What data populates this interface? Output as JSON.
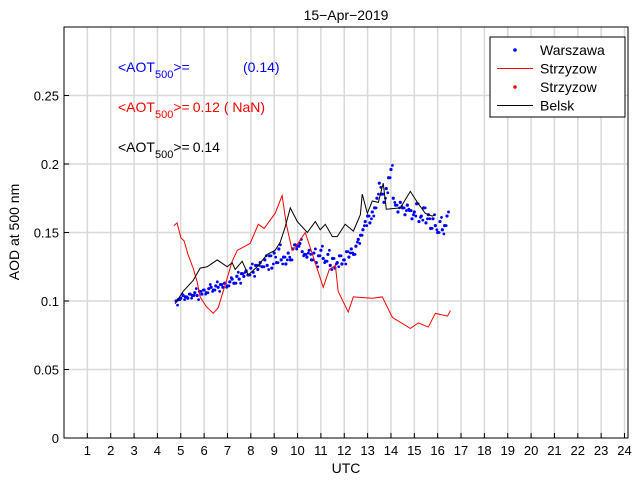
{
  "chart_data": {
    "type": "line",
    "title": "15−Apr−2019",
    "xlabel": "UTC",
    "ylabel": "AOD at 500 nm",
    "xlim": [
      0,
      24.15
    ],
    "ylim": [
      0,
      0.3
    ],
    "xticks": [
      1,
      2,
      3,
      4,
      5,
      6,
      7,
      8,
      9,
      10,
      11,
      12,
      13,
      14,
      15,
      16,
      17,
      18,
      19,
      20,
      21,
      22,
      23,
      24
    ],
    "yticks": [
      0,
      0.05,
      0.1,
      0.15,
      0.2,
      0.25
    ],
    "ytick_labels": [
      "0",
      "0.05",
      "0.1",
      "0.15",
      "0.2",
      "0.25"
    ],
    "grid": true,
    "legend_position": "top-right",
    "colors": {
      "warszawa": "#0000ff",
      "strzyzow": "#ff0000",
      "belsk": "#000000"
    },
    "annotations": [
      {
        "prefix": "<AOT",
        "sub": "500",
        "suffix": ">=",
        "value": "(0.14)",
        "color": "#0000ff"
      },
      {
        "prefix": "<AOT",
        "sub": "500",
        "suffix": ">=",
        "value": "0.12 ( NaN)",
        "color": "#ff0000"
      },
      {
        "prefix": "<AOT",
        "sub": "500",
        "suffix": ">=",
        "value": "0.14",
        "color": "#000000"
      }
    ],
    "series": [
      {
        "name": "Warszawa",
        "style": "dots",
        "color": "#0000ff",
        "x": [
          4.8,
          4.9,
          5.0,
          5.1,
          5.2,
          5.3,
          5.4,
          5.5,
          5.6,
          5.7,
          5.8,
          5.9,
          6.0,
          6.1,
          6.2,
          6.3,
          6.4,
          6.5,
          6.6,
          6.7,
          6.8,
          6.9,
          7.0,
          7.1,
          7.2,
          7.3,
          7.4,
          7.5,
          7.6,
          7.7,
          7.8,
          7.9,
          8.0,
          8.1,
          8.2,
          8.3,
          8.4,
          8.5,
          8.6,
          8.7,
          8.8,
          8.9,
          9.0,
          9.1,
          9.2,
          9.3,
          9.4,
          9.5,
          9.6,
          9.7,
          9.8,
          9.9,
          10.0,
          10.1,
          10.2,
          10.3,
          10.4,
          10.5,
          10.6,
          10.7,
          10.8,
          10.9,
          11.0,
          11.1,
          11.2,
          11.3,
          11.4,
          11.5,
          11.6,
          11.7,
          11.8,
          11.9,
          12.0,
          12.1,
          12.2,
          12.3,
          12.4,
          12.5,
          12.6,
          12.7,
          12.8,
          12.9,
          13.0,
          13.1,
          13.2,
          13.3,
          13.4,
          13.5,
          13.6,
          13.7,
          13.8,
          13.9,
          14.0,
          14.1,
          14.2,
          14.3,
          14.4,
          14.5,
          14.6,
          14.7,
          14.8,
          14.9,
          15.0,
          15.1,
          15.2,
          15.3,
          15.4,
          15.5,
          15.6,
          15.7,
          15.8,
          15.9,
          16.0,
          16.1,
          16.2,
          16.3,
          16.4
        ],
        "y": [
          0.1,
          0.101,
          0.102,
          0.104,
          0.103,
          0.102,
          0.105,
          0.104,
          0.106,
          0.104,
          0.107,
          0.105,
          0.108,
          0.106,
          0.109,
          0.11,
          0.108,
          0.111,
          0.11,
          0.112,
          0.11,
          0.113,
          0.111,
          0.114,
          0.116,
          0.113,
          0.118,
          0.116,
          0.12,
          0.118,
          0.122,
          0.119,
          0.124,
          0.121,
          0.126,
          0.123,
          0.128,
          0.125,
          0.13,
          0.126,
          0.133,
          0.124,
          0.135,
          0.128,
          0.138,
          0.13,
          0.132,
          0.127,
          0.135,
          0.13,
          0.138,
          0.141,
          0.14,
          0.142,
          0.136,
          0.134,
          0.132,
          0.137,
          0.13,
          0.135,
          0.128,
          0.133,
          0.137,
          0.131,
          0.129,
          0.134,
          0.126,
          0.131,
          0.124,
          0.128,
          0.133,
          0.127,
          0.13,
          0.136,
          0.132,
          0.138,
          0.134,
          0.14,
          0.145,
          0.148,
          0.152,
          0.158,
          0.162,
          0.157,
          0.165,
          0.168,
          0.175,
          0.186,
          0.178,
          0.172,
          0.182,
          0.19,
          0.196,
          0.175,
          0.17,
          0.165,
          0.172,
          0.168,
          0.163,
          0.17,
          0.166,
          0.16,
          0.165,
          0.171,
          0.158,
          0.162,
          0.168,
          0.157,
          0.163,
          0.153,
          0.16,
          0.155,
          0.15,
          0.158,
          0.152,
          0.155,
          0.162
        ]
      },
      {
        "name": "Strzyzow",
        "style": "line",
        "color": "#ff0000",
        "x": [
          4.71,
          4.84,
          5.01,
          5.14,
          5.31,
          5.53,
          5.7,
          5.83,
          6.09,
          6.39,
          6.6,
          6.94,
          7.2,
          7.42,
          7.97,
          8.32,
          8.57,
          9.04,
          9.34,
          9.52,
          9.77,
          9.94,
          10.33,
          11.1,
          11.36,
          11.62,
          11.74,
          12.17,
          12.39,
          13.2,
          13.63,
          14.06,
          14.83,
          15.17,
          15.6,
          15.9,
          16.42,
          16.55
        ],
        "y": [
          0.155,
          0.157,
          0.146,
          0.144,
          0.134,
          0.124,
          0.114,
          0.103,
          0.096,
          0.091,
          0.095,
          0.114,
          0.129,
          0.137,
          0.142,
          0.156,
          0.153,
          0.164,
          0.177,
          0.156,
          0.137,
          0.14,
          0.15,
          0.11,
          0.123,
          0.126,
          0.107,
          0.092,
          0.103,
          0.102,
          0.103,
          0.088,
          0.08,
          0.084,
          0.081,
          0.091,
          0.089,
          0.093
        ]
      },
      {
        "name": "Strzyzow",
        "style": "dots",
        "color": "#ff0000",
        "x": [],
        "y": []
      },
      {
        "name": "Belsk",
        "style": "line",
        "color": "#000000",
        "x": [
          4.76,
          5.1,
          5.53,
          5.83,
          6.13,
          6.56,
          6.99,
          7.2,
          7.33,
          7.63,
          7.89,
          8.27,
          8.7,
          9.04,
          9.26,
          9.47,
          9.69,
          9.99,
          10.42,
          10.76,
          10.97,
          11.19,
          11.49,
          11.7,
          12.04,
          12.39,
          12.69,
          12.77,
          12.99,
          13.2,
          13.46,
          13.67,
          13.8,
          14.4,
          14.83,
          15.13,
          15.47,
          15.77,
          15.9
        ],
        "y": [
          0.098,
          0.107,
          0.115,
          0.124,
          0.125,
          0.13,
          0.125,
          0.128,
          0.123,
          0.129,
          0.119,
          0.125,
          0.134,
          0.137,
          0.143,
          0.154,
          0.168,
          0.158,
          0.15,
          0.158,
          0.152,
          0.156,
          0.147,
          0.147,
          0.156,
          0.151,
          0.163,
          0.178,
          0.164,
          0.173,
          0.172,
          0.186,
          0.167,
          0.168,
          0.18,
          0.172,
          0.164,
          0.162,
          0.163
        ]
      }
    ]
  }
}
